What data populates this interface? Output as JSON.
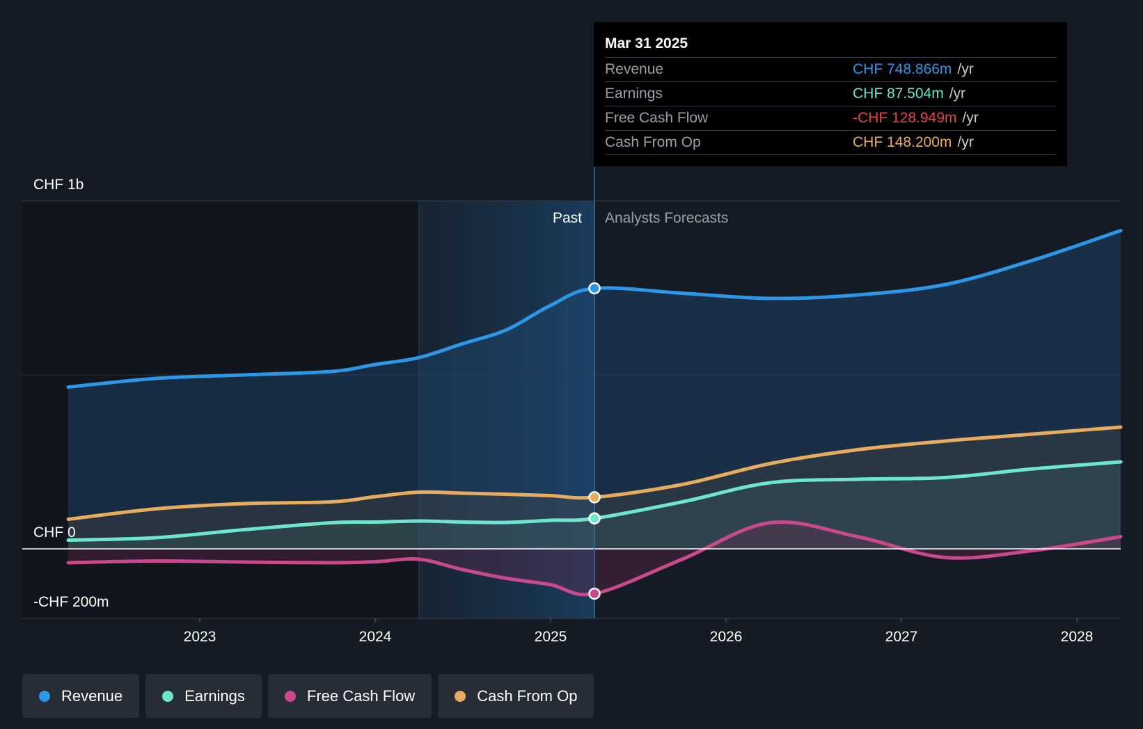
{
  "chart_data": {
    "type": "line",
    "title": "",
    "currency": "CHF",
    "x_ticks": [
      "2023",
      "2024",
      "2025",
      "2026",
      "2027",
      "2028"
    ],
    "y_labels": [
      "CHF 1b",
      "CHF 0",
      "-CHF 200m"
    ],
    "ylim": [
      -200,
      1000
    ],
    "divider_date": 2025.25,
    "past_label": "Past",
    "forecast_label": "Analysts Forecasts",
    "series": [
      {
        "name": "Revenue",
        "color": "#2d96e6",
        "x": [
          2022.25,
          2022.75,
          2023.25,
          2023.75,
          2024.0,
          2024.25,
          2024.5,
          2024.75,
          2025.0,
          2025.25,
          2025.75,
          2026.25,
          2026.75,
          2027.25,
          2027.75,
          2028.25
        ],
        "values": [
          465,
          490,
          500,
          510,
          530,
          550,
          590,
          630,
          700,
          749,
          735,
          720,
          730,
          760,
          830,
          915
        ]
      },
      {
        "name": "Earnings",
        "color": "#6ee6cd",
        "x": [
          2022.25,
          2022.75,
          2023.25,
          2023.75,
          2024.0,
          2024.25,
          2024.5,
          2024.75,
          2025.0,
          2025.25,
          2025.75,
          2026.25,
          2026.75,
          2027.25,
          2027.75,
          2028.25
        ],
        "values": [
          25,
          32,
          55,
          75,
          77,
          80,
          77,
          76,
          82,
          87.5,
          135,
          190,
          200,
          205,
          230,
          250
        ]
      },
      {
        "name": "Free Cash Flow",
        "color": "#c94a8c",
        "x": [
          2022.25,
          2022.75,
          2023.25,
          2023.75,
          2024.0,
          2024.25,
          2024.5,
          2024.75,
          2025.0,
          2025.25,
          2025.75,
          2026.25,
          2026.75,
          2027.25,
          2027.75,
          2028.25
        ],
        "values": [
          -40,
          -35,
          -38,
          -40,
          -37,
          -30,
          -60,
          -85,
          -103,
          -128.9,
          -30,
          75,
          35,
          -25,
          -5,
          35
        ]
      },
      {
        "name": "Cash From Op",
        "color": "#e8ac5e",
        "x": [
          2022.25,
          2022.75,
          2023.25,
          2023.75,
          2024.0,
          2024.25,
          2024.5,
          2024.75,
          2025.0,
          2025.25,
          2025.75,
          2026.25,
          2026.75,
          2027.25,
          2027.75,
          2028.25
        ],
        "values": [
          85,
          115,
          130,
          135,
          150,
          163,
          160,
          157,
          153,
          148.2,
          185,
          245,
          285,
          310,
          330,
          350
        ]
      }
    ]
  },
  "tooltip": {
    "date": "Mar 31 2025",
    "rows": [
      {
        "label": "Revenue",
        "value": "CHF 748.866m",
        "unit": "/yr",
        "color": "#2d96e6"
      },
      {
        "label": "Earnings",
        "value": "CHF 87.504m",
        "unit": "/yr",
        "color": "#6ee6cd"
      },
      {
        "label": "Free Cash Flow",
        "value": "-CHF 128.949m",
        "unit": "/yr",
        "color": "#e8424a"
      },
      {
        "label": "Cash From Op",
        "value": "CHF 148.200m",
        "unit": "/yr",
        "color": "#e8ac5e"
      }
    ]
  },
  "legend": [
    {
      "label": "Revenue",
      "color": "#2d96e6"
    },
    {
      "label": "Earnings",
      "color": "#6ee6cd"
    },
    {
      "label": "Free Cash Flow",
      "color": "#c94a8c"
    },
    {
      "label": "Cash From Op",
      "color": "#e8ac5e"
    }
  ]
}
